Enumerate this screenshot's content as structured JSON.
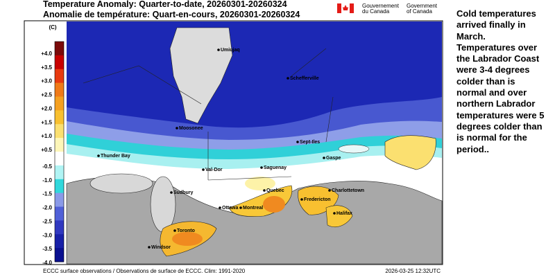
{
  "header": {
    "title_en": "Temperature Anomaly: Quarter-to-date, 20260301-20260324",
    "title_fr": "Anomalie de température: Quart-en-cours, 20260301-20260324",
    "gov_fr": [
      "Gouvernement",
      "du Canada"
    ],
    "gov_en": [
      "Government",
      "of Canada"
    ]
  },
  "legend": {
    "unit": "(C)",
    "ticks": [
      "+4.0",
      "+3.5",
      "+3.0",
      "+2.5",
      "+2.0",
      "+1.5",
      "+1.0",
      "+0.5",
      "-0.5",
      "-1.0",
      "-1.5",
      "-2.0",
      "-2.5",
      "-3.0",
      "-3.5",
      "-4.0"
    ],
    "colors": [
      "#7a0a0a",
      "#c80000",
      "#e83a10",
      "#f07a18",
      "#f5a020",
      "#f8c030",
      "#fbe070",
      "#fdf6b8",
      "#ffffff",
      "#b0f4f4",
      "#30d8dc",
      "#8a9ae8",
      "#5060d8",
      "#3038c0",
      "#1820a8",
      "#0a1090"
    ]
  },
  "cities": [
    "Umiujaq",
    "Schefferville",
    "Moosonee",
    "Sept-Iles",
    "Gaspe",
    "Thunder Bay",
    "Val-Dor",
    "Saguenay",
    "Sudbury",
    "Quebec",
    "Charlottetown",
    "Fredericton",
    "Ottawa",
    "Montreal",
    "Halifax",
    "Toronto",
    "Windsor"
  ],
  "footer": {
    "source": "ECCC surface observations / Observations de surface de ECCC. Clim: 1991-2020",
    "timestamp": "2026-03-25 12:32UTC"
  },
  "side_note": "Cold temperatures arrived finally in March. Temperatures over the Labrador Coast were 3-4 degrees colder than is normal and over northern Labrador temperatures were 5 degrees colder than is normal for the period.."
}
